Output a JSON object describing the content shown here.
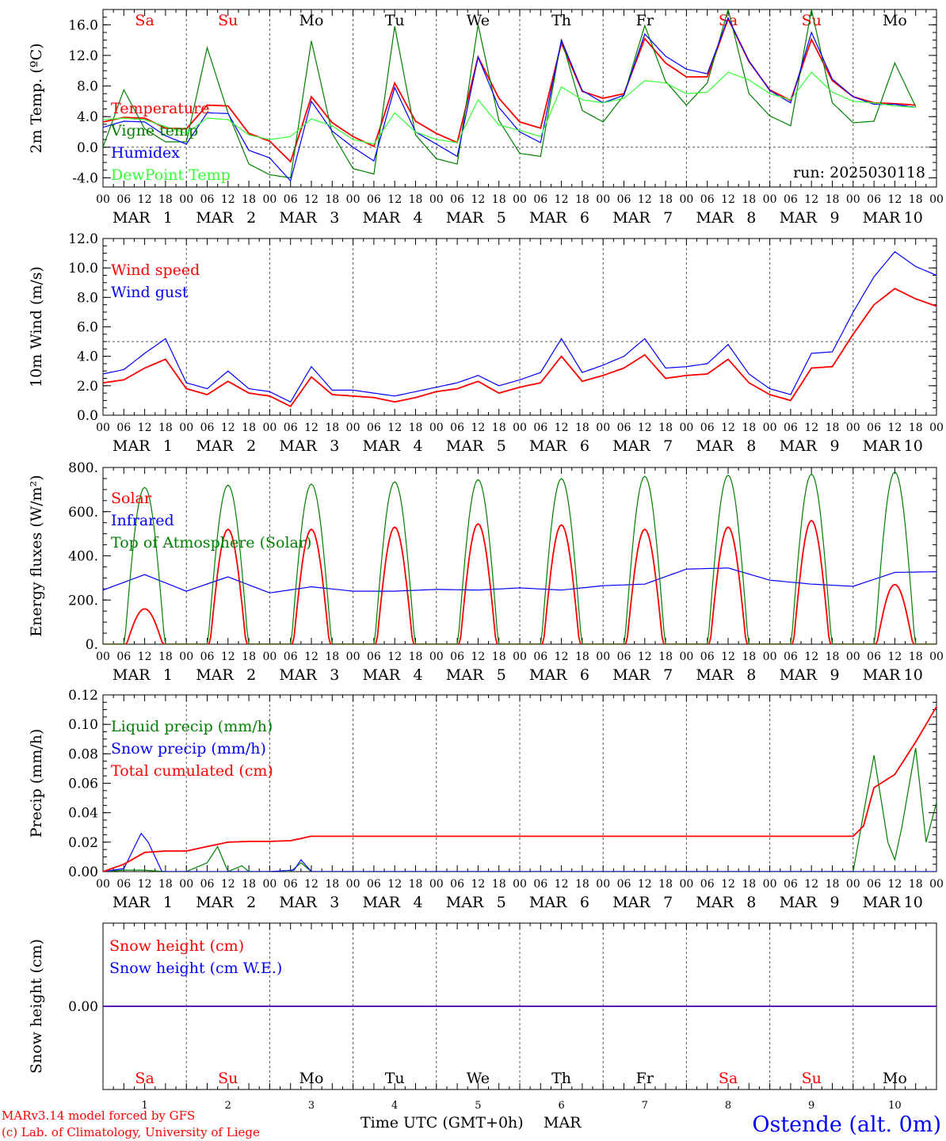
{
  "colors": {
    "red": "#ff0000",
    "blue": "#0000ff",
    "green": "#008000",
    "light_green": "#33ff33",
    "axis": "#000000"
  },
  "days": [
    {
      "wd": "Sa",
      "month": "MAR",
      "day": "1",
      "weekend": true
    },
    {
      "wd": "Su",
      "month": "MAR",
      "day": "2",
      "weekend": true
    },
    {
      "wd": "Mo",
      "month": "MAR",
      "day": "3",
      "weekend": false
    },
    {
      "wd": "Tu",
      "month": "MAR",
      "day": "4",
      "weekend": false
    },
    {
      "wd": "We",
      "month": "MAR",
      "day": "5",
      "weekend": false
    },
    {
      "wd": "Th",
      "month": "MAR",
      "day": "6",
      "weekend": false
    },
    {
      "wd": "Fr",
      "month": "MAR",
      "day": "7",
      "weekend": false
    },
    {
      "wd": "Sa",
      "month": "MAR",
      "day": "8",
      "weekend": true
    },
    {
      "wd": "Su",
      "month": "MAR",
      "day": "9",
      "weekend": true
    },
    {
      "wd": "Mo",
      "month": "MAR",
      "day": "10",
      "weekend": false
    }
  ],
  "hour_ticks": [
    "00",
    "06",
    "12",
    "18"
  ],
  "footer": {
    "model": "MARv3.14 model forced by GFS",
    "credit": "(c) Lab. of Climatology, University of Liege",
    "xlabel": "Time UTC (GMT+0h)",
    "xunit": "MAR",
    "location": "Ostende (alt. 0m)"
  },
  "chart_data": [
    {
      "type": "line",
      "ylabel": "2m Temp. (ºC)",
      "ylim": [
        -5.2,
        18.0
      ],
      "yticks": [
        "-4.0",
        "0.0",
        "4.0",
        "8.0",
        "12.0",
        "16.0"
      ],
      "ytick_values": [
        -4,
        0,
        4,
        8,
        12,
        16
      ],
      "reference_line": 0,
      "annotation": "run: 2025030118",
      "x_hours": [
        0,
        6,
        12,
        18,
        24,
        30,
        36,
        42,
        48,
        54,
        60,
        66,
        72,
        78,
        84,
        90,
        96,
        102,
        108,
        114,
        120,
        126,
        132,
        138,
        144,
        150,
        156,
        162,
        168,
        174,
        180,
        186,
        192,
        198,
        204,
        210,
        216,
        222,
        228,
        234
      ],
      "series": [
        {
          "name": "Temperature",
          "color": "red",
          "values": [
            3.3,
            3.9,
            3.8,
            2.5,
            2.4,
            5.5,
            5.4,
            1.8,
            0.8,
            -1.9,
            6.6,
            3.2,
            1.4,
            0.1,
            8.4,
            3.4,
            1.8,
            0.6,
            11.8,
            6.4,
            3.3,
            2.5,
            13.6,
            7.3,
            6.4,
            7.0,
            14.2,
            11.0,
            9.2,
            9.2,
            16.8,
            11.2,
            7.5,
            6.1,
            14.1,
            8.7,
            6.6,
            5.8,
            5.7,
            5.5
          ]
        },
        {
          "name": "Vigne temp",
          "color": "green",
          "values": [
            0.0,
            7.5,
            2.4,
            0.7,
            0.7,
            13.0,
            4.5,
            -2.2,
            -3.6,
            -4.0,
            13.9,
            1.8,
            -2.8,
            -3.5,
            15.8,
            1.6,
            -1.5,
            -2.2,
            16.0,
            3.5,
            -0.8,
            -1.2,
            14.1,
            4.8,
            3.3,
            6.8,
            15.9,
            8.6,
            5.5,
            8.4,
            18.0,
            7.0,
            4.1,
            2.8,
            18.0,
            5.8,
            3.2,
            3.4,
            11.0,
            5.3
          ]
        },
        {
          "name": "Humidex",
          "color": "blue",
          "values": [
            2.6,
            3.4,
            3.3,
            1.5,
            0.4,
            4.5,
            4.4,
            -0.4,
            -1.4,
            -4.4,
            6.0,
            2.1,
            0.0,
            -1.8,
            7.8,
            2.0,
            0.4,
            -1.2,
            11.8,
            5.2,
            2.0,
            0.6,
            14.0,
            7.4,
            5.8,
            6.8,
            14.8,
            11.9,
            10.2,
            9.6,
            16.9,
            11.3,
            7.4,
            5.8,
            15.0,
            8.9,
            6.6,
            5.6,
            5.6,
            5.2
          ]
        },
        {
          "name": "DewPoint Temp",
          "color": "light_green",
          "values": [
            3.6,
            3.8,
            3.6,
            2.7,
            1.8,
            3.8,
            3.6,
            1.6,
            1.0,
            1.4,
            3.7,
            2.8,
            1.0,
            0.4,
            4.5,
            2.0,
            1.0,
            0.6,
            6.2,
            2.9,
            2.2,
            1.4,
            7.9,
            6.2,
            5.8,
            6.4,
            8.7,
            8.4,
            7.0,
            7.2,
            9.8,
            8.8,
            7.0,
            6.2,
            9.8,
            7.2,
            6.0,
            5.8,
            5.4,
            5.2
          ]
        }
      ]
    },
    {
      "type": "line",
      "ylabel": "10m Wind (m/s)",
      "ylim": [
        0,
        12
      ],
      "yticks": [
        "0.0",
        "2.0",
        "4.0",
        "6.0",
        "8.0",
        "10.0",
        "12.0"
      ],
      "ytick_values": [
        0,
        2,
        4,
        6,
        8,
        10,
        12
      ],
      "reference_line": 5,
      "annotation": "",
      "x_hours": [
        0,
        6,
        12,
        18,
        24,
        30,
        36,
        42,
        48,
        54,
        60,
        66,
        72,
        78,
        84,
        90,
        96,
        102,
        108,
        114,
        120,
        126,
        132,
        138,
        144,
        150,
        156,
        162,
        168,
        174,
        180,
        186,
        192,
        198,
        204,
        210,
        216,
        222,
        228,
        234,
        240
      ],
      "series": [
        {
          "name": "Wind speed",
          "color": "red",
          "values": [
            2.2,
            2.4,
            3.2,
            3.8,
            1.8,
            1.4,
            2.3,
            1.5,
            1.3,
            0.6,
            2.6,
            1.4,
            1.3,
            1.2,
            0.9,
            1.2,
            1.6,
            1.8,
            2.3,
            1.5,
            1.9,
            2.2,
            4.0,
            2.3,
            2.7,
            3.2,
            4.1,
            2.5,
            2.7,
            2.8,
            3.8,
            2.2,
            1.4,
            1.0,
            3.2,
            3.3,
            5.5,
            7.5,
            8.6,
            7.9,
            7.4
          ]
        },
        {
          "name": "Wind gust",
          "color": "blue",
          "values": [
            2.8,
            3.1,
            4.2,
            5.2,
            2.2,
            1.8,
            3.0,
            1.8,
            1.6,
            0.9,
            3.3,
            1.7,
            1.7,
            1.5,
            1.3,
            1.6,
            1.9,
            2.2,
            2.7,
            2.0,
            2.4,
            2.9,
            5.2,
            2.9,
            3.4,
            4.0,
            5.2,
            3.2,
            3.3,
            3.5,
            4.8,
            2.8,
            1.8,
            1.4,
            4.2,
            4.3,
            7.0,
            9.4,
            11.1,
            10.1,
            9.5
          ]
        }
      ]
    },
    {
      "type": "line",
      "ylabel": "Energy fluxes (W/m²)",
      "ylim": [
        0,
        800
      ],
      "yticks": [
        "0.",
        "200.",
        "400.",
        "600.",
        "800."
      ],
      "ytick_values": [
        0,
        200,
        400,
        600,
        800
      ],
      "reference_line": null,
      "annotation": "",
      "peaks": {
        "solar": [
          160,
          520,
          520,
          530,
          545,
          540,
          520,
          530,
          560,
          270
        ],
        "toa": [
          710,
          720,
          725,
          735,
          745,
          750,
          760,
          765,
          770,
          780
        ]
      },
      "x_hours": [
        0,
        12,
        24,
        36,
        48,
        60,
        72,
        84,
        96,
        108,
        120,
        132,
        144,
        156,
        168,
        180,
        192,
        204,
        216,
        228,
        240
      ],
      "series": [
        {
          "name": "Solar",
          "color": "red",
          "values": []
        },
        {
          "name": "Infrared",
          "color": "blue",
          "values": [
            245,
            315,
            240,
            305,
            232,
            260,
            240,
            240,
            248,
            245,
            255,
            245,
            265,
            272,
            340,
            345,
            290,
            272,
            262,
            325,
            328
          ]
        },
        {
          "name": "Top of Atmosphere (Solar)",
          "color": "green",
          "values": []
        }
      ]
    },
    {
      "type": "line",
      "ylabel": "Precip (mm/h)",
      "ylim": [
        0,
        0.12
      ],
      "yticks": [
        "0.00",
        "0.02",
        "0.04",
        "0.06",
        "0.08",
        "0.10",
        "0.12"
      ],
      "ytick_values": [
        0,
        0.02,
        0.04,
        0.06,
        0.08,
        0.1,
        0.12
      ],
      "reference_line": null,
      "annotation": "",
      "series": [
        {
          "name": "Liquid precip (mm/h)",
          "color": "green",
          "x_hours": [
            0,
            6,
            12,
            18,
            24,
            30,
            33,
            36,
            40,
            42,
            48,
            54,
            57,
            60,
            216,
            222,
            226,
            228,
            230,
            234,
            237,
            240
          ],
          "values": [
            0,
            0.001,
            0.001,
            0,
            0,
            0.006,
            0.017,
            0,
            0.004,
            0,
            0,
            0,
            0.006,
            0,
            0,
            0.079,
            0.02,
            0.008,
            0.03,
            0.084,
            0.02,
            0.047
          ]
        },
        {
          "name": "Snow precip (mm/h)",
          "color": "blue",
          "x_hours": [
            0,
            6,
            11,
            13,
            17,
            24,
            48,
            55,
            57,
            60,
            240
          ],
          "values": [
            0,
            0.002,
            0.026,
            0.02,
            0,
            0,
            0,
            0.001,
            0.008,
            0,
            0
          ]
        },
        {
          "name": "Total cumulated (cm)",
          "color": "red",
          "x_hours": [
            0,
            6,
            12,
            18,
            24,
            30,
            36,
            42,
            48,
            54,
            60,
            120,
            180,
            216,
            219,
            222,
            228,
            234,
            240
          ],
          "values": [
            0,
            0.005,
            0.013,
            0.014,
            0.014,
            0.017,
            0.02,
            0.0205,
            0.0205,
            0.021,
            0.024,
            0.024,
            0.024,
            0.024,
            0.031,
            0.057,
            0.066,
            0.088,
            0.112
          ]
        }
      ]
    },
    {
      "type": "line",
      "ylabel": "Snow height (cm)",
      "ylim": [
        -1,
        1
      ],
      "yticks": [
        "0.00"
      ],
      "ytick_values": [
        0
      ],
      "reference_line": null,
      "annotation": "",
      "series": [
        {
          "name": "Snow height (cm)",
          "color": "red",
          "x_hours": [
            0,
            240
          ],
          "values": [
            0,
            0
          ]
        },
        {
          "name": "Snow height (cm W.E.)",
          "color": "blue",
          "x_hours": [
            0,
            240
          ],
          "values": [
            0,
            0
          ]
        }
      ]
    }
  ]
}
